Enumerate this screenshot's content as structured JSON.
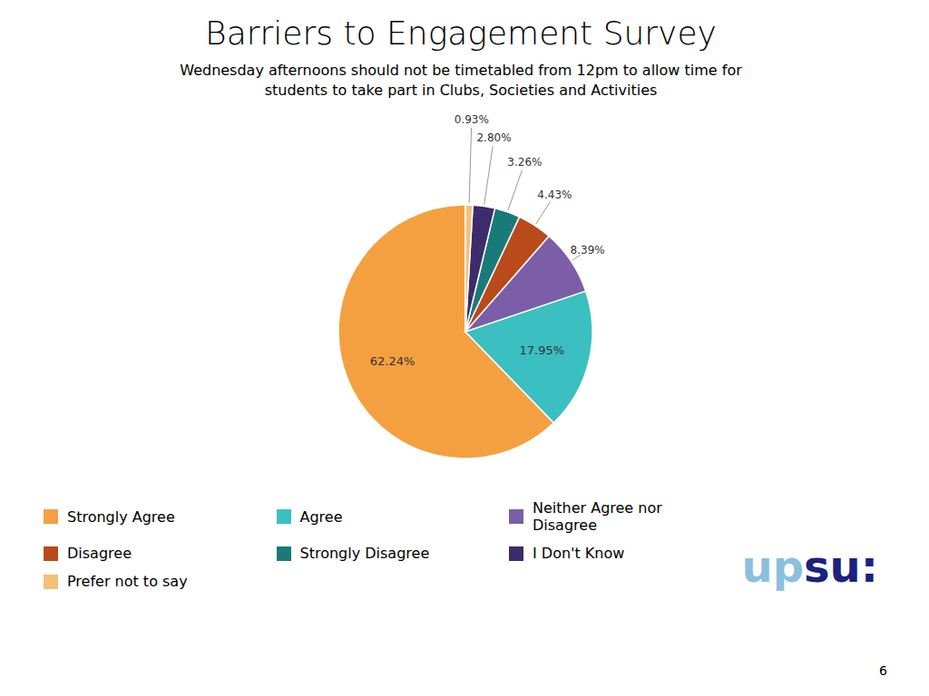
{
  "chart_data": {
    "type": "pie",
    "title": "Barriers to Engagement Survey",
    "subtitle": [
      "Wednesday afternoons should not be timetabled from 12pm to allow time for",
      "students to take part in Clubs, Societies and Activities"
    ],
    "categories": [
      "Strongly Agree",
      "Agree",
      "Neither Agree nor Disagree",
      "Disagree",
      "Strongly Disagree",
      "I Don't Know",
      "Prefer not to say"
    ],
    "values": [
      62.24,
      17.95,
      8.39,
      4.43,
      3.26,
      2.8,
      0.93
    ],
    "value_labels": [
      "62.24%",
      "17.95%",
      "8.39%",
      "4.43%",
      "3.26%",
      "2.80%",
      "0.93%"
    ],
    "colors": [
      "#F4A040",
      "#3BBFC0",
      "#7B5EA7",
      "#B94A1A",
      "#1A7A7A",
      "#3D2B6B",
      "#F5C07A"
    ],
    "data_labels": true,
    "legend": "bottom",
    "annotations": [
      {
        "text": "up",
        "color": "#8BBFDF"
      },
      {
        "text": "su",
        "color": "#1A237E"
      },
      {
        "text": ":",
        "color": "#1A237E"
      },
      {
        "text": "6"
      }
    ]
  }
}
